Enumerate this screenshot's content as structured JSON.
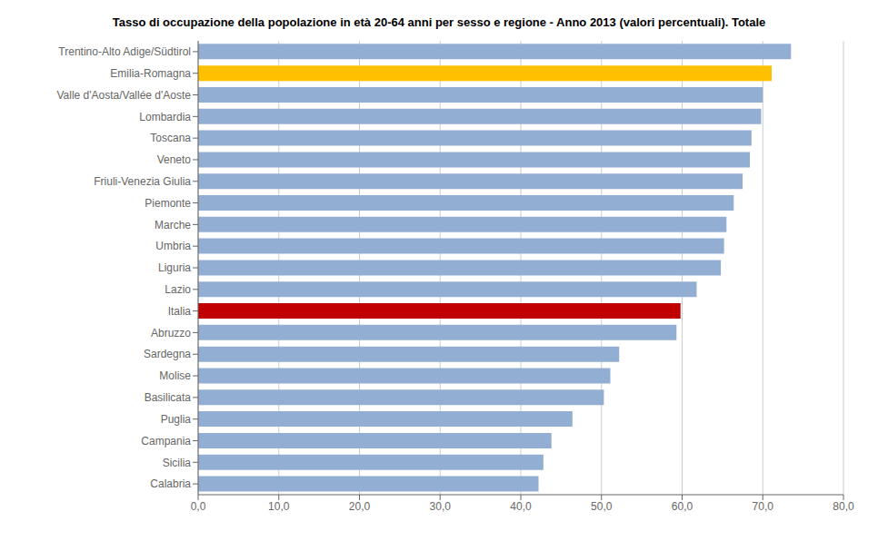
{
  "chart_data": {
    "type": "bar",
    "orientation": "horizontal",
    "title": "Tasso di occupazione della popolazione in età 20-64 anni per sesso e regione - Anno 2013  (valori percentuali). Totale",
    "categories": [
      "Trentino-Alto Adige/Südtirol",
      "Emilia-Romagna",
      "Valle d'Aosta/Vallée d'Aoste",
      "Lombardia",
      "Toscana",
      "Veneto",
      "Friuli-Venezia Giulia",
      "Piemonte",
      "Marche",
      "Umbria",
      "Liguria",
      "Lazio",
      "Italia",
      "Abruzzo",
      "Sardegna",
      "Molise",
      "Basilicata",
      "Puglia",
      "Campania",
      "Sicilia",
      "Calabria"
    ],
    "values": [
      73.5,
      71.1,
      70.0,
      69.8,
      68.6,
      68.4,
      67.5,
      66.4,
      65.5,
      65.2,
      64.8,
      61.8,
      59.8,
      59.3,
      52.2,
      51.1,
      50.3,
      46.4,
      43.8,
      42.8,
      42.2
    ],
    "colors": [
      "#92afd3",
      "#ffc000",
      "#92afd3",
      "#92afd3",
      "#92afd3",
      "#92afd3",
      "#92afd3",
      "#92afd3",
      "#92afd3",
      "#92afd3",
      "#92afd3",
      "#92afd3",
      "#c00000",
      "#92afd3",
      "#92afd3",
      "#92afd3",
      "#92afd3",
      "#92afd3",
      "#92afd3",
      "#92afd3",
      "#92afd3"
    ],
    "xlim": [
      0,
      80
    ],
    "xticks": [
      {
        "value": 0,
        "label": "0,0"
      },
      {
        "value": 10,
        "label": "10,0"
      },
      {
        "value": 20,
        "label": "20,0"
      },
      {
        "value": 30,
        "label": "30,0"
      },
      {
        "value": 40,
        "label": "40,0"
      },
      {
        "value": 50,
        "label": "50,0"
      },
      {
        "value": 60,
        "label": "60,0"
      },
      {
        "value": 70,
        "label": "70,0"
      },
      {
        "value": 80,
        "label": "80,0"
      }
    ],
    "grid": true
  }
}
